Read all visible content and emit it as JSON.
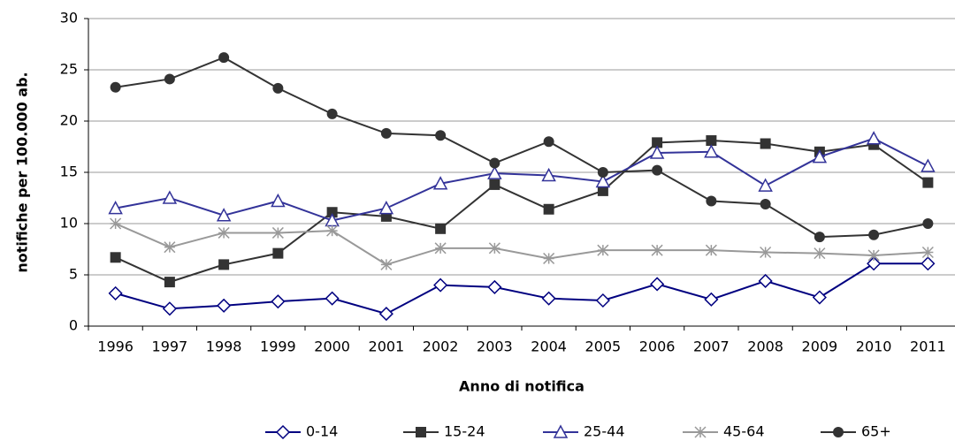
{
  "chart_data": {
    "type": "line",
    "x_label": "Anno di notifica",
    "y_label": "notifiche per 100.000 ab.",
    "categories": [
      "1996",
      "1997",
      "1998",
      "1999",
      "2000",
      "2001",
      "2002",
      "2003",
      "2004",
      "2005",
      "2006",
      "2007",
      "2008",
      "2009",
      "2010",
      "2011"
    ],
    "ylim": [
      0,
      30
    ],
    "yticks": [
      0,
      5,
      10,
      15,
      20,
      25,
      30
    ],
    "grid": true,
    "legend": "bottom",
    "series": [
      {
        "name": "0-14",
        "color": "#000080",
        "marker": "diamond",
        "values": [
          3.2,
          1.7,
          2.0,
          2.4,
          2.7,
          1.2,
          4.0,
          3.8,
          2.7,
          2.5,
          4.1,
          2.6,
          4.4,
          2.8,
          6.1,
          6.1
        ]
      },
      {
        "name": "15-24",
        "color": "#333333",
        "marker": "square",
        "values": [
          6.7,
          4.3,
          6.0,
          7.1,
          11.1,
          10.7,
          9.5,
          13.8,
          11.4,
          13.2,
          17.9,
          18.1,
          17.8,
          17.0,
          17.7,
          14.0
        ]
      },
      {
        "name": "25-44",
        "color": "#333399",
        "marker": "triangle",
        "values": [
          11.5,
          12.5,
          10.8,
          12.2,
          10.3,
          11.5,
          13.9,
          14.9,
          14.7,
          14.1,
          16.9,
          17.0,
          13.7,
          16.5,
          18.3,
          15.6
        ]
      },
      {
        "name": "45-64",
        "color": "#999999",
        "marker": "star",
        "values": [
          10.0,
          7.7,
          9.1,
          9.1,
          9.3,
          6.0,
          7.6,
          7.6,
          6.6,
          7.4,
          7.4,
          7.4,
          7.2,
          7.1,
          6.9,
          7.2
        ]
      },
      {
        "name": "65+",
        "color": "#333333",
        "marker": "circle",
        "values": [
          23.3,
          24.1,
          26.2,
          23.2,
          20.7,
          18.8,
          18.6,
          15.9,
          18.0,
          15.0,
          15.2,
          12.2,
          11.9,
          8.7,
          8.9,
          10.0
        ]
      }
    ]
  }
}
